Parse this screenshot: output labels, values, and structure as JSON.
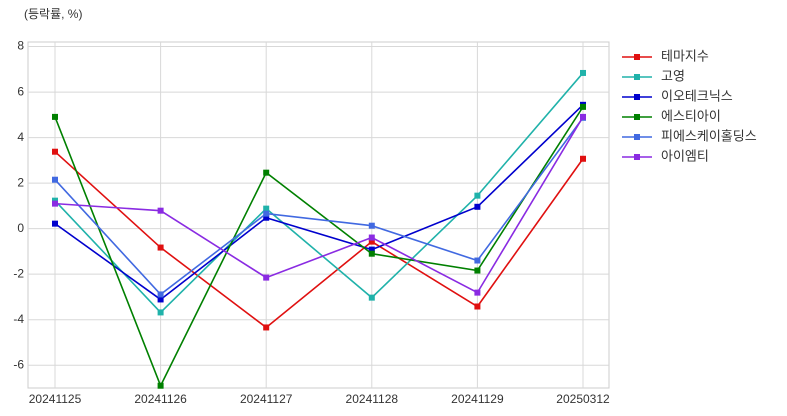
{
  "chart_data": {
    "type": "line",
    "y_label": "(등락률, %)",
    "categories": [
      "20241125",
      "20241126",
      "20241127",
      "20241128",
      "20241129",
      "20250312"
    ],
    "series": [
      {
        "name": "테마지수",
        "color": "#e01010",
        "values": [
          3.38,
          -0.83,
          -4.34,
          -0.57,
          -3.42,
          3.07
        ]
      },
      {
        "name": "고영",
        "color": "#20b2aa",
        "values": [
          1.23,
          -3.68,
          0.88,
          -3.03,
          1.45,
          6.84
        ]
      },
      {
        "name": "이오테크닉스",
        "color": "#0000cd",
        "values": [
          0.22,
          -3.11,
          0.48,
          -0.92,
          0.96,
          5.44
        ]
      },
      {
        "name": "에스티아이",
        "color": "#008000",
        "values": [
          4.91,
          -6.9,
          2.46,
          -1.1,
          -1.84,
          5.35
        ]
      },
      {
        "name": "피에스케이홀딩스",
        "color": "#4169e1",
        "values": [
          2.15,
          -2.89,
          0.66,
          0.13,
          -1.4,
          4.87
        ]
      },
      {
        "name": "아이엠티",
        "color": "#8a2be2",
        "values": [
          1.1,
          0.79,
          -2.15,
          -0.39,
          -2.81,
          4.91
        ]
      }
    ],
    "ylim": [
      -7,
      8.2
    ],
    "yticks": [
      -6,
      -4,
      -2,
      0,
      2,
      4,
      6,
      8
    ],
    "grid": true,
    "legend": "right"
  }
}
